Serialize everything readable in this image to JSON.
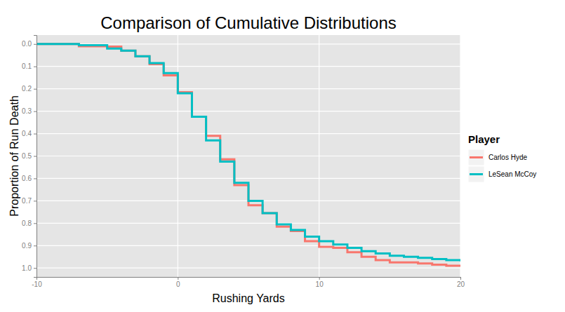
{
  "chart_data": {
    "type": "step",
    "title": "Comparison of Cumulative Distributions",
    "x_label": "Rushing Yards",
    "y_label": "Proportion of Run Death",
    "legend_title": "Player",
    "legend": "right",
    "grid": true,
    "x": [
      -10,
      -9,
      -8,
      -7,
      -6,
      -5,
      -4,
      -3,
      -2,
      -1,
      0,
      1,
      2,
      3,
      4,
      5,
      6,
      7,
      8,
      9,
      10,
      11,
      12,
      13,
      14,
      15,
      16,
      17,
      18,
      19,
      20
    ],
    "series": [
      {
        "name": "Carlos Hyde",
        "color": "#F8766D",
        "values": [
          0,
          0,
          0,
          0.01,
          0.01,
          0.012,
          0.03,
          0.055,
          0.09,
          0.14,
          0.215,
          0.325,
          0.41,
          0.515,
          0.63,
          0.72,
          0.755,
          0.815,
          0.835,
          0.88,
          0.905,
          0.91,
          0.93,
          0.95,
          0.965,
          0.975,
          0.975,
          0.98,
          0.985,
          0.99,
          0.99
        ]
      },
      {
        "name": "LeSean McCoy",
        "color": "#00BFC4",
        "values": [
          0,
          0,
          0,
          0.005,
          0.005,
          0.02,
          0.03,
          0.055,
          0.085,
          0.13,
          0.22,
          0.325,
          0.43,
          0.525,
          0.62,
          0.7,
          0.755,
          0.805,
          0.83,
          0.86,
          0.88,
          0.895,
          0.91,
          0.925,
          0.935,
          0.945,
          0.95,
          0.955,
          0.96,
          0.965,
          0.97
        ]
      }
    ],
    "xlim": [
      -10,
      20
    ],
    "xticks": [
      -10,
      0,
      10,
      20
    ],
    "ylim": [
      1.04,
      -0.04
    ],
    "yticks": [
      {
        "value": 0,
        "label": "0.0"
      },
      0.1,
      0.2,
      0.3,
      0.4,
      0.5,
      0.6,
      0.7,
      0.8,
      0.9,
      {
        "value": 1,
        "label": "1.0"
      }
    ]
  }
}
